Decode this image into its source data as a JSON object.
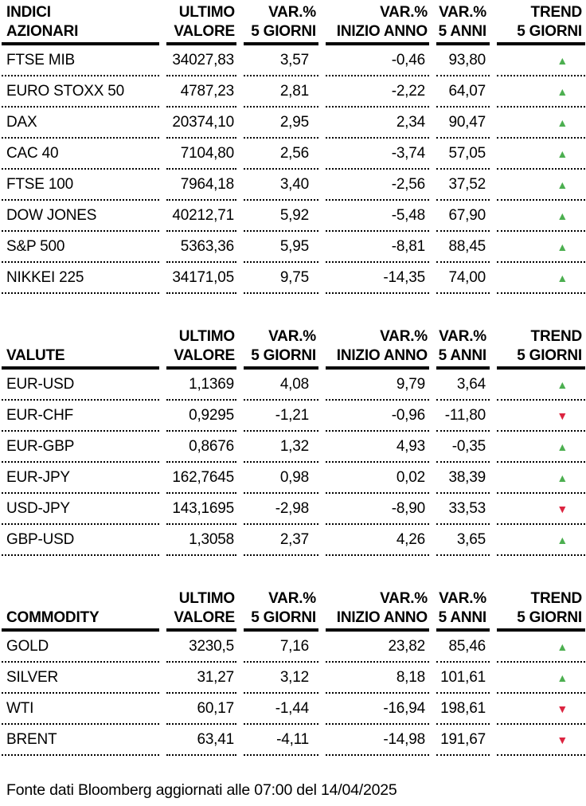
{
  "columns": {
    "value_l1": "ULTIMO",
    "value_l2": "VALORE",
    "var5d_l1": "VAR.%",
    "var5d_l2": "5 GIORNI",
    "ytd_l1": "VAR.%",
    "ytd_l2": "INIZIO ANNO",
    "var5y_l1": "VAR.%",
    "var5y_l2": "5 ANNI",
    "trend_l1": "TREND",
    "trend_l2": "5 GIORNI"
  },
  "sections": [
    {
      "title_line1": "INDICI",
      "title_line2": "AZIONARI",
      "rows": [
        {
          "name": "FTSE MIB",
          "value": "34027,83",
          "var5d": "3,57",
          "ytd": "-0,46",
          "var5y": "93,80",
          "trend": "up"
        },
        {
          "name": "EURO STOXX 50",
          "value": "4787,23",
          "var5d": "2,81",
          "ytd": "-2,22",
          "var5y": "64,07",
          "trend": "up"
        },
        {
          "name": "DAX",
          "value": "20374,10",
          "var5d": "2,95",
          "ytd": "2,34",
          "var5y": "90,47",
          "trend": "up"
        },
        {
          "name": "CAC 40",
          "value": "7104,80",
          "var5d": "2,56",
          "ytd": "-3,74",
          "var5y": "57,05",
          "trend": "up"
        },
        {
          "name": "FTSE 100",
          "value": "7964,18",
          "var5d": "3,40",
          "ytd": "-2,56",
          "var5y": "37,52",
          "trend": "up"
        },
        {
          "name": "DOW JONES",
          "value": "40212,71",
          "var5d": "5,92",
          "ytd": "-5,48",
          "var5y": "67,90",
          "trend": "up"
        },
        {
          "name": "S&P 500",
          "value": "5363,36",
          "var5d": "5,95",
          "ytd": "-8,81",
          "var5y": "88,45",
          "trend": "up"
        },
        {
          "name": "NIKKEI 225",
          "value": "34171,05",
          "var5d": "9,75",
          "ytd": "-14,35",
          "var5y": "74,00",
          "trend": "up"
        }
      ]
    },
    {
      "title_line1": "",
      "title_line2": "VALUTE",
      "rows": [
        {
          "name": "EUR-USD",
          "value": "1,1369",
          "var5d": "4,08",
          "ytd": "9,79",
          "var5y": "3,64",
          "trend": "up"
        },
        {
          "name": "EUR-CHF",
          "value": "0,9295",
          "var5d": "-1,21",
          "ytd": "-0,96",
          "var5y": "-11,80",
          "trend": "down"
        },
        {
          "name": "EUR-GBP",
          "value": "0,8676",
          "var5d": "1,32",
          "ytd": "4,93",
          "var5y": "-0,35",
          "trend": "up"
        },
        {
          "name": "EUR-JPY",
          "value": "162,7645",
          "var5d": "0,98",
          "ytd": "0,02",
          "var5y": "38,39",
          "trend": "up"
        },
        {
          "name": "USD-JPY",
          "value": "143,1695",
          "var5d": "-2,98",
          "ytd": "-8,90",
          "var5y": "33,53",
          "trend": "down"
        },
        {
          "name": "GBP-USD",
          "value": "1,3058",
          "var5d": "2,37",
          "ytd": "4,26",
          "var5y": "3,65",
          "trend": "up"
        }
      ]
    },
    {
      "title_line1": "",
      "title_line2": "COMMODITY",
      "rows": [
        {
          "name": "GOLD",
          "value": "3230,5",
          "var5d": "7,16",
          "ytd": "23,82",
          "var5y": "85,46",
          "trend": "up"
        },
        {
          "name": "SILVER",
          "value": "31,27",
          "var5d": "3,12",
          "ytd": "8,18",
          "var5y": "101,61",
          "trend": "up"
        },
        {
          "name": "WTI",
          "value": "60,17",
          "var5d": "-1,44",
          "ytd": "-16,94",
          "var5y": "198,61",
          "trend": "down"
        },
        {
          "name": "BRENT",
          "value": "63,41",
          "var5d": "-4,11",
          "ytd": "-14,98",
          "var5y": "191,67",
          "trend": "down"
        }
      ]
    }
  ],
  "icons": {
    "up": "▲",
    "down": "▼"
  },
  "colors": {
    "up": "#4CAF50",
    "down": "#DC2440",
    "text": "#000000"
  },
  "footer": "Fonte dati Bloomberg aggiornati alle 07:00 del 14/04/2025"
}
